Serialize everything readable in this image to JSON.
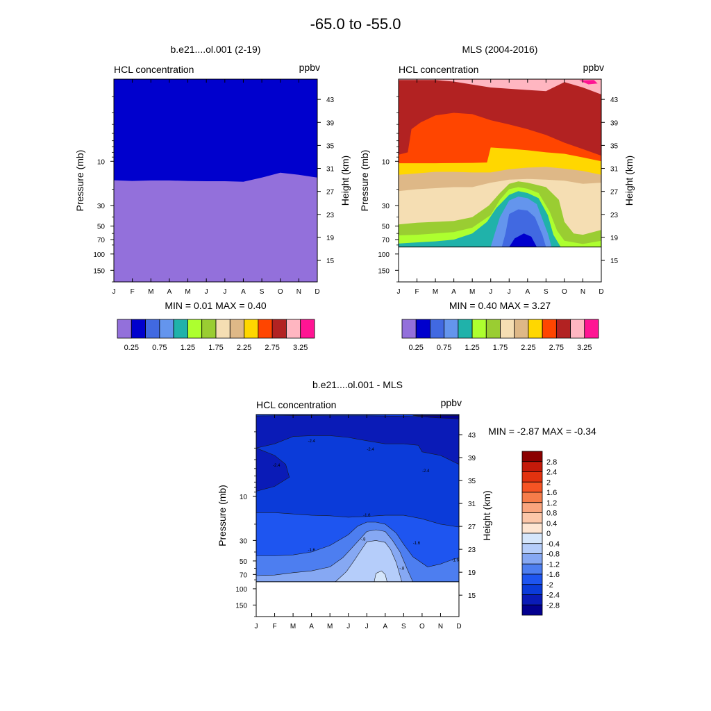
{
  "figure": {
    "title": "-65.0 to -55.0",
    "colors": {
      "model_fill": [
        "#9370DB",
        "#0000CD"
      ],
      "mls_fill": [
        "#FFB6C1",
        "#B22222",
        "#FF4500",
        "#FFD700",
        "#DEB887",
        "#F5DEB3",
        "#9ACD32",
        "#ADFF2F",
        "#20B2AA",
        "#6495ED",
        "#4169E1",
        "#0000CD"
      ],
      "diff_fill": [
        "#03008F",
        "#0A1BB7",
        "#0B3BD9",
        "#1E55F0",
        "#4D7EF0",
        "#86A8F3",
        "#B5CDFA",
        "#D5E6FB"
      ]
    }
  },
  "chart_data": [
    {
      "id": "model",
      "type": "heatmap",
      "title": "b.e21....ol.001 (2-19)",
      "left_string": "HCL concentration",
      "right_string": "ppbv",
      "ylabel": "Pressure (mb)",
      "y2label": "Height (km)",
      "x": [
        "J",
        "F",
        "M",
        "A",
        "M",
        "J",
        "J",
        "A",
        "S",
        "O",
        "N",
        "D"
      ],
      "y_ticks": [
        "10",
        "30",
        "50",
        "70",
        "100",
        "150"
      ],
      "y_tick_values": [
        10,
        30,
        50,
        70,
        100,
        150
      ],
      "y2_ticks": [
        "43",
        "39",
        "35",
        "31",
        "27",
        "23",
        "19",
        "15"
      ],
      "ylim_pressure": [
        1.3,
        200
      ],
      "stats": {
        "min_label": "MIN =",
        "min": "0.01",
        "max_label": "MAX =",
        "max": "0.40"
      },
      "boundary_0_25_pressure": [
        16.0,
        16.3,
        16.1,
        16.1,
        16.3,
        16.4,
        16.4,
        16.6,
        15.0,
        13.3,
        14.0,
        15.0
      ],
      "levels": [
        0.25,
        0.75
      ]
    },
    {
      "id": "mls",
      "type": "heatmap",
      "title": "MLS (2004-2016)",
      "left_string": "HCL concentration",
      "right_string": "ppbv",
      "ylabel": "Pressure (mb)",
      "y2label": "Height (km)",
      "x": [
        "J",
        "F",
        "M",
        "A",
        "M",
        "J",
        "J",
        "A",
        "S",
        "O",
        "N",
        "D"
      ],
      "y_ticks": [
        "10",
        "30",
        "50",
        "70",
        "100",
        "150"
      ],
      "y_tick_values": [
        10,
        30,
        50,
        70,
        100,
        150
      ],
      "y2_ticks": [
        "43",
        "39",
        "35",
        "31",
        "27",
        "23",
        "19",
        "15"
      ],
      "ylim_pressure": [
        1.3,
        200
      ],
      "data_bottom_pressure": 84,
      "stats": {
        "min_label": "MIN =",
        "min": "0.40",
        "max_label": "MAX =",
        "max": "3.27"
      },
      "contour_levels_ppbv": [
        3.25,
        3.0,
        2.75,
        2.5,
        2.25,
        2.0,
        1.75,
        1.5,
        1.25,
        1.0,
        0.75,
        0.5
      ]
    },
    {
      "id": "diff",
      "type": "heatmap",
      "title": "b.e21....ol.001 - MLS",
      "left_string": "HCL concentration",
      "right_string": "ppbv",
      "ylabel": "Pressure (mb)",
      "y2label": "Height (km)",
      "x": [
        "J",
        "F",
        "M",
        "A",
        "M",
        "J",
        "J",
        "A",
        "S",
        "O",
        "N",
        "D"
      ],
      "y_ticks": [
        "10",
        "30",
        "50",
        "70",
        "100",
        "150"
      ],
      "y_tick_values": [
        10,
        30,
        50,
        70,
        100,
        150
      ],
      "y2_ticks": [
        "43",
        "39",
        "35",
        "31",
        "27",
        "23",
        "19",
        "15"
      ],
      "ylim_pressure": [
        1.3,
        200
      ],
      "data_bottom_pressure": 84,
      "stats": {
        "min_label": "MIN =",
        "min": "-2.87",
        "max_label": "MAX =",
        "max": "-0.34"
      },
      "contour_labels": [
        {
          "text": "-2.4",
          "month": 3.0,
          "p": 2.5
        },
        {
          "text": "-2.4",
          "month": 6.2,
          "p": 3.1
        },
        {
          "text": "-2.4",
          "month": 1.1,
          "p": 4.6
        },
        {
          "text": "-2.4",
          "month": 9.2,
          "p": 5.3
        },
        {
          "text": "-1.6",
          "month": 6.0,
          "p": 16.0
        },
        {
          "text": "-1.6",
          "month": 3.0,
          "p": 38.0
        },
        {
          "text": "-1.6",
          "month": 8.7,
          "p": 32.0
        },
        {
          "text": "-1.6",
          "month": 10.8,
          "p": 49.0
        },
        {
          "text": "-.8",
          "month": 5.8,
          "p": 29.0
        },
        {
          "text": "-.8",
          "month": 7.9,
          "p": 60.0
        }
      ]
    }
  ],
  "colorbar_top": {
    "labels": [
      "0.25",
      "0.75",
      "1.25",
      "1.75",
      "2.25",
      "2.75",
      "3.25"
    ],
    "colors": [
      "#9370DB",
      "#0000CD",
      "#4169E1",
      "#6495ED",
      "#20B2AA",
      "#ADFF2F",
      "#9ACD32",
      "#F5DEB3",
      "#DEB887",
      "#FFD700",
      "#FF4500",
      "#B22222",
      "#FFB6C1",
      "#FF1493"
    ]
  },
  "colorbar_diff": {
    "labels": [
      "2.8",
      "2.4",
      "2",
      "1.6",
      "1.2",
      "0.8",
      "0.4",
      "0",
      "-0.4",
      "-0.8",
      "-1.2",
      "-1.6",
      "-2",
      "-2.4",
      "-2.8"
    ],
    "colors": [
      "#8B0000",
      "#C41A0A",
      "#E2320F",
      "#F65424",
      "#F67D4A",
      "#F9A57E",
      "#FCC7A9",
      "#FDE5D2",
      "#D5E6FB",
      "#B5CDFA",
      "#86A8F3",
      "#4D7EF0",
      "#1E55F0",
      "#0B3BD9",
      "#0A1BB7",
      "#03008F"
    ]
  }
}
